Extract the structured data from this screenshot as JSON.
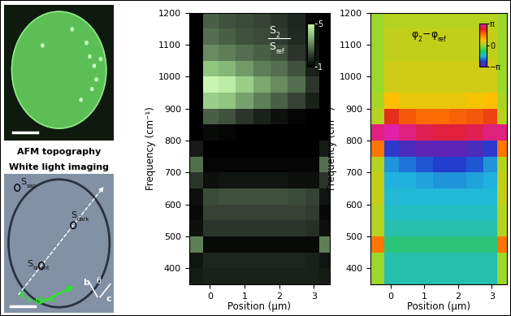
{
  "chart_data": [
    {
      "type": "heatmap",
      "xlabel": "Position (µm)",
      "ylabel": "Frequency (cm⁻¹)",
      "xlim": [
        -0.6,
        3.45
      ],
      "ylim": [
        350,
        1200
      ],
      "xticks": [
        0,
        1,
        2,
        3
      ],
      "yticks": [
        400,
        500,
        600,
        700,
        800,
        900,
        1000,
        1100,
        1200
      ],
      "x": [
        -0.4,
        0.0,
        0.5,
        1.0,
        1.5,
        2.0,
        2.5,
        3.0,
        3.3
      ],
      "y": [
        375,
        425,
        475,
        525,
        575,
        625,
        675,
        725,
        775,
        825,
        875,
        925,
        975,
        1025,
        1075,
        1125,
        1175
      ],
      "cells": [
        [
          1.5,
          1.6,
          1.6,
          1.6,
          1.6,
          1.6,
          1.6,
          1.6,
          1.5
        ],
        [
          1.4,
          1.7,
          1.7,
          1.7,
          1.7,
          1.7,
          1.7,
          1.6,
          1.4
        ],
        [
          3.0,
          1.2,
          1.2,
          1.2,
          1.2,
          1.2,
          1.2,
          1.2,
          3.0
        ],
        [
          1.3,
          2.0,
          2.0,
          2.0,
          2.0,
          2.0,
          2.0,
          1.9,
          1.3
        ],
        [
          1.2,
          2.2,
          2.2,
          2.2,
          2.2,
          2.2,
          2.2,
          2.1,
          1.2
        ],
        [
          1.3,
          2.3,
          2.4,
          2.4,
          2.4,
          2.4,
          2.3,
          2.2,
          1.4
        ],
        [
          2.0,
          1.3,
          1.4,
          1.4,
          1.4,
          1.4,
          1.3,
          1.3,
          2.0
        ],
        [
          2.8,
          1.1,
          1.1,
          1.1,
          1.1,
          1.1,
          1.1,
          1.1,
          2.8
        ],
        [
          1.5,
          1.0,
          1.0,
          1.0,
          1.0,
          1.0,
          1.0,
          1.0,
          1.5
        ],
        [
          1.0,
          1.2,
          1.1,
          1.0,
          1.0,
          1.0,
          1.0,
          1.0,
          1.0
        ],
        [
          1.0,
          2.6,
          2.4,
          2.0,
          1.6,
          1.3,
          1.1,
          1.0,
          1.0
        ],
        [
          1.0,
          4.2,
          4.0,
          3.5,
          3.0,
          2.6,
          2.2,
          1.6,
          1.0
        ],
        [
          1.0,
          5.0,
          4.8,
          4.2,
          3.6,
          3.2,
          2.8,
          2.0,
          1.0
        ],
        [
          1.0,
          4.0,
          3.8,
          3.4,
          3.0,
          2.8,
          2.4,
          1.6,
          1.0
        ],
        [
          1.0,
          3.2,
          3.0,
          2.8,
          2.6,
          2.4,
          2.0,
          1.4,
          1.0
        ],
        [
          1.0,
          2.8,
          2.6,
          2.4,
          2.3,
          2.1,
          1.8,
          1.3,
          1.0
        ],
        [
          1.0,
          2.6,
          2.4,
          2.3,
          2.2,
          2.0,
          1.7,
          1.2,
          1.0
        ]
      ],
      "colorbar": {
        "label": {
          "numerator": [
            {
              "symbol": "S",
              "subscript": "2"
            }
          ],
          "denominator": [
            {
              "symbol": "S",
              "subscript": "ref"
            }
          ]
        },
        "range": [
          1,
          5
        ],
        "ticks": [
          5,
          1
        ]
      }
    },
    {
      "type": "heatmap",
      "xlabel": "Position (µm)",
      "ylabel": "Frequency (cm⁻¹)",
      "xlim": [
        -0.6,
        3.45
      ],
      "ylim": [
        350,
        1200
      ],
      "xticks": [
        0,
        1,
        2,
        3
      ],
      "yticks": [
        400,
        500,
        600,
        700,
        800,
        900,
        1000,
        1100,
        1200
      ],
      "x": [
        -0.4,
        0.0,
        0.5,
        1.0,
        1.5,
        2.0,
        2.5,
        3.0,
        3.3
      ],
      "y": [
        375,
        425,
        475,
        525,
        575,
        625,
        675,
        725,
        775,
        825,
        875,
        925,
        975,
        1025,
        1075,
        1125,
        1175
      ],
      "cells": [
        [
          0.0,
          -1.3,
          -1.3,
          -1.3,
          -1.3,
          -1.3,
          -1.3,
          -1.3,
          0.0
        ],
        [
          0.0,
          -1.3,
          -1.3,
          -1.3,
          -1.3,
          -1.3,
          -1.3,
          -1.3,
          0.0
        ],
        [
          1.5,
          -1.0,
          -1.0,
          -1.0,
          -1.0,
          -1.0,
          -1.0,
          -1.0,
          1.5
        ],
        [
          0.2,
          -1.3,
          -1.3,
          -1.3,
          -1.3,
          -1.3,
          -1.3,
          -1.3,
          0.2
        ],
        [
          0.2,
          -1.4,
          -1.4,
          -1.4,
          -1.4,
          -1.4,
          -1.4,
          -1.4,
          0.2
        ],
        [
          0.3,
          -1.5,
          -1.5,
          -1.5,
          -1.5,
          -1.5,
          -1.5,
          -1.5,
          0.3
        ],
        [
          0.3,
          -1.6,
          -1.6,
          -1.7,
          -1.8,
          -1.8,
          -1.7,
          -1.6,
          0.3
        ],
        [
          0.2,
          -1.8,
          -2.0,
          -2.2,
          -2.4,
          -2.4,
          -2.2,
          -1.8,
          0.2
        ],
        [
          1.5,
          -2.5,
          -2.8,
          -3.0,
          -3.0,
          -3.0,
          -2.8,
          -2.5,
          1.5
        ],
        [
          2.8,
          3.0,
          2.8,
          2.6,
          2.5,
          2.5,
          2.6,
          2.8,
          2.8
        ],
        [
          0.2,
          2.2,
          1.8,
          1.6,
          1.6,
          1.7,
          1.8,
          2.0,
          0.2
        ],
        [
          0.1,
          0.8,
          0.6,
          0.6,
          0.6,
          0.6,
          0.7,
          0.8,
          0.1
        ],
        [
          0.0,
          0.4,
          0.4,
          0.4,
          0.4,
          0.4,
          0.4,
          0.4,
          0.0
        ],
        [
          0.0,
          0.4,
          0.4,
          0.4,
          0.4,
          0.4,
          0.4,
          0.4,
          0.0
        ],
        [
          0.0,
          0.3,
          0.3,
          0.3,
          0.3,
          0.3,
          0.3,
          0.3,
          0.0
        ],
        [
          0.0,
          0.3,
          0.3,
          0.3,
          0.3,
          0.3,
          0.3,
          0.3,
          0.0
        ],
        [
          0.0,
          0.2,
          0.2,
          0.2,
          0.2,
          0.2,
          0.2,
          0.2,
          0.0
        ]
      ],
      "colorbar": {
        "label": [
          {
            "symbol": "φ",
            "subscript": "2"
          },
          {
            "symbol": "−"
          },
          {
            "symbol": "φ",
            "subscript": "ref"
          }
        ],
        "range": [
          -3.14159,
          3.14159
        ],
        "ticks": [
          {
            "value": 3.14159,
            "label": "π"
          },
          {
            "value": 0,
            "label": "0"
          },
          {
            "value": -3.14159,
            "label": "−π"
          }
        ]
      }
    }
  ],
  "images": [
    {
      "label": "AFM topography"
    },
    {
      "label": "White light imaging",
      "points": [
        {
          "symbol": "S",
          "subscript": "sap"
        },
        {
          "symbol": "S",
          "subscript": "dark"
        },
        {
          "symbol": "S",
          "subscript": "bright"
        }
      ],
      "crystal_axes": [
        "b",
        "c",
        "θ"
      ],
      "arrow": {
        "symbol": "k",
        "subscript": "in-plane"
      }
    }
  ]
}
